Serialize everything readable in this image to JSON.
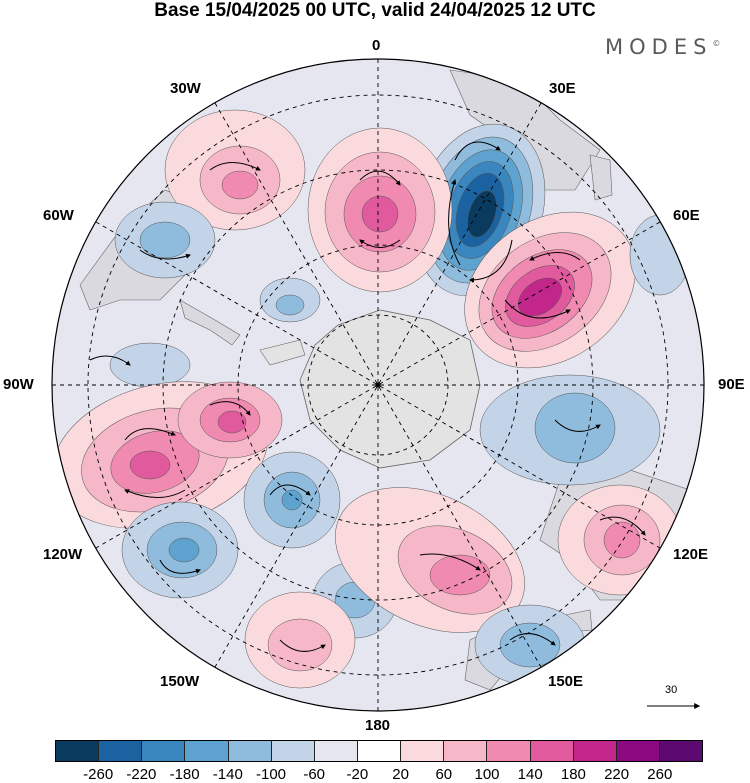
{
  "title": "Base 15/04/2025 00 UTC, valid 24/04/2025 12 UTC",
  "brand": "MODES",
  "brand_mark": "©",
  "longitude_labels": {
    "lon_0": "0",
    "lon_30e": "30E",
    "lon_60e": "60E",
    "lon_90e": "90E",
    "lon_120e": "120E",
    "lon_150e": "150E",
    "lon_180": "180",
    "lon_150w": "150W",
    "lon_120w": "120W",
    "lon_90w": "90W",
    "lon_60w": "60W",
    "lon_30w": "30W"
  },
  "reference_vector": {
    "label": "30"
  },
  "colorbar": {
    "colors": [
      "#0a3a5e",
      "#1a62a0",
      "#3a86bf",
      "#5ea3d0",
      "#8fbcdd",
      "#c3d3e8",
      "#e6e6f1",
      "#ffffff",
      "#fadadd",
      "#f6b8c8",
      "#f08ab0",
      "#e05a9d",
      "#c2268a",
      "#8b0a82",
      "#5c0a70"
    ],
    "ticks": [
      "-260",
      "-220",
      "-180",
      "-140",
      "-100",
      "-60",
      "-20",
      "20",
      "60",
      "100",
      "140",
      "180",
      "220",
      "260"
    ]
  }
}
